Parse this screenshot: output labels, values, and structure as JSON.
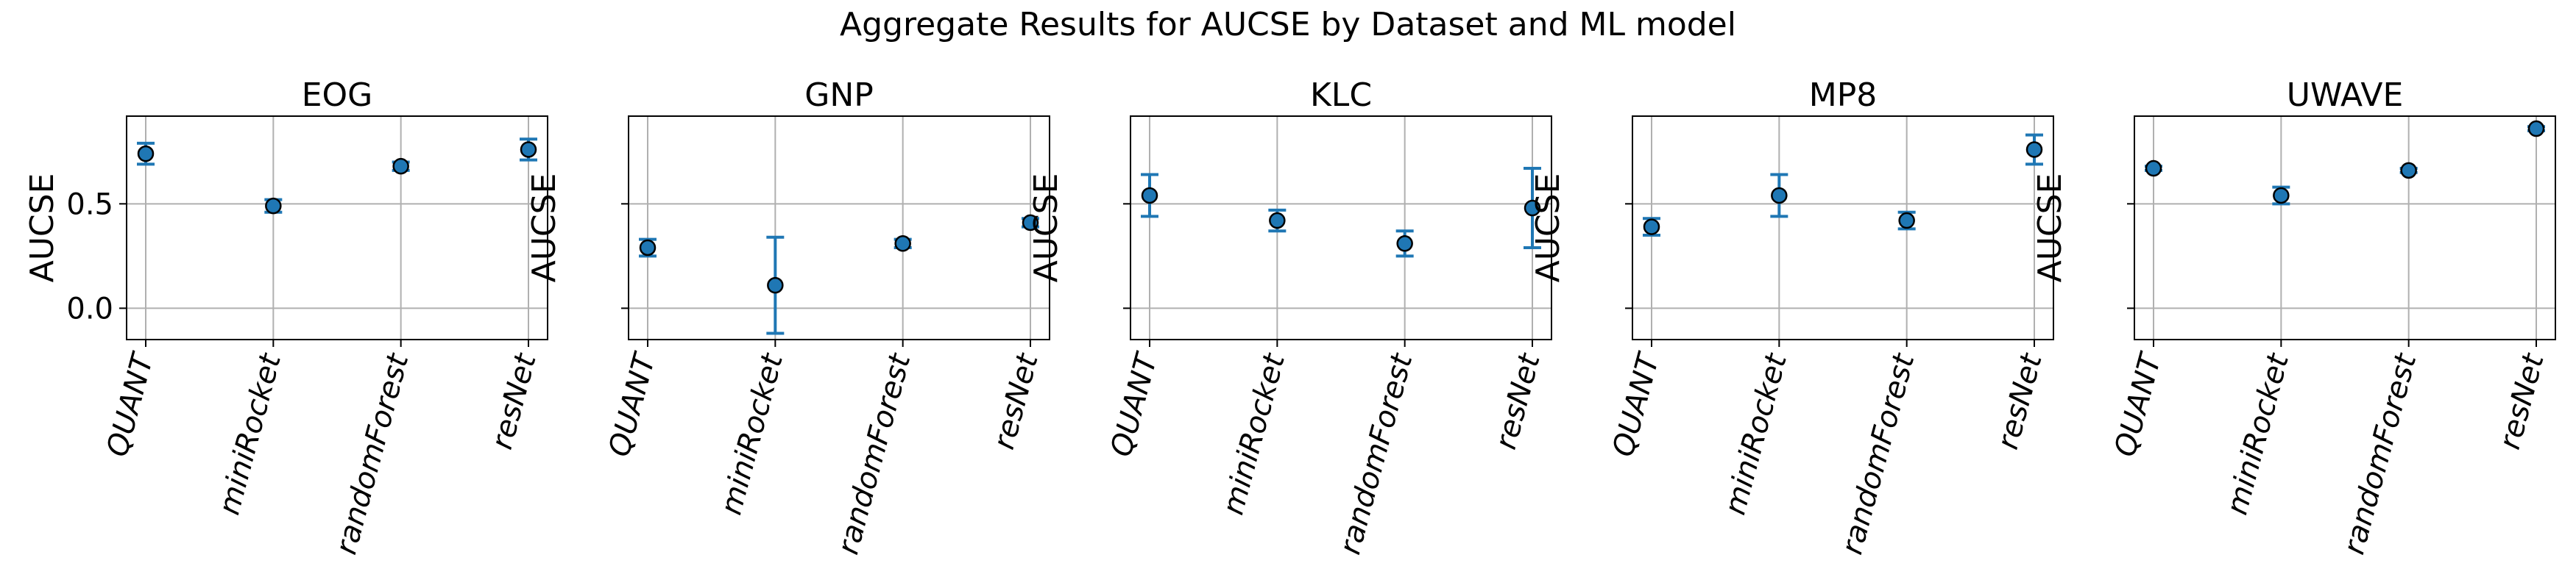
{
  "title": "Aggregate Results for AUCSE by Dataset and ML model",
  "colors": {
    "marker": "#1f77b4",
    "errorbar": "#1f77b4",
    "grid": "#b0b0b0"
  },
  "chart_data": [
    {
      "type": "scatter",
      "title": "EOG",
      "xlabel": "",
      "ylabel": "AUCSE",
      "categories": [
        "QUANT",
        "miniRocket",
        "randomForest",
        "resNet"
      ],
      "values": [
        0.74,
        0.49,
        0.68,
        0.76
      ],
      "error": [
        0.05,
        0.03,
        0.02,
        0.05
      ],
      "yticks": [
        "0.0",
        "0.5"
      ],
      "ylim": [
        -0.15,
        0.92
      ],
      "grid": true
    },
    {
      "type": "scatter",
      "title": "GNP",
      "xlabel": "",
      "ylabel": "AUCSE",
      "categories": [
        "QUANT",
        "miniRocket",
        "randomForest",
        "resNet"
      ],
      "values": [
        0.29,
        0.11,
        0.31,
        0.41
      ],
      "error": [
        0.04,
        0.23,
        0.02,
        0.02
      ],
      "yticks": [],
      "ylim": [
        -0.15,
        0.92
      ],
      "grid": true
    },
    {
      "type": "scatter",
      "title": "KLC",
      "xlabel": "",
      "ylabel": "AUCSE",
      "categories": [
        "QUANT",
        "miniRocket",
        "randomForest",
        "resNet"
      ],
      "values": [
        0.54,
        0.42,
        0.31,
        0.48
      ],
      "error": [
        0.1,
        0.05,
        0.06,
        0.19
      ],
      "yticks": [],
      "ylim": [
        -0.15,
        0.92
      ],
      "grid": true
    },
    {
      "type": "scatter",
      "title": "MP8",
      "xlabel": "",
      "ylabel": "AUCSE",
      "categories": [
        "QUANT",
        "miniRocket",
        "randomForest",
        "resNet"
      ],
      "values": [
        0.39,
        0.54,
        0.42,
        0.76
      ],
      "error": [
        0.04,
        0.1,
        0.04,
        0.07
      ],
      "yticks": [],
      "ylim": [
        -0.15,
        0.92
      ],
      "grid": true
    },
    {
      "type": "scatter",
      "title": "UWAVE",
      "xlabel": "",
      "ylabel": "AUCSE",
      "categories": [
        "QUANT",
        "miniRocket",
        "randomForest",
        "resNet"
      ],
      "values": [
        0.67,
        0.54,
        0.66,
        0.86
      ],
      "error": [
        0.01,
        0.04,
        0.01,
        0.01
      ],
      "yticks": [],
      "ylim": [
        -0.15,
        0.92
      ],
      "grid": true
    }
  ]
}
